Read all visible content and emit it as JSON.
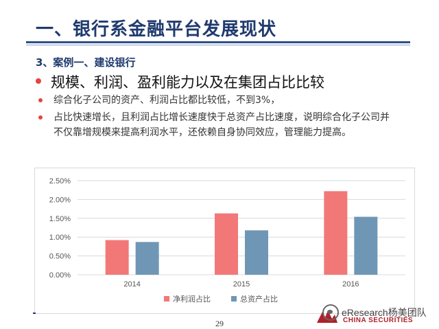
{
  "slide": {
    "title": "一、银行系金融平台发展现状",
    "subtitle": "3、案例一、建设银行",
    "main_bullet": "规模、利润、盈利能力以及在集团占比比较",
    "bullets": [
      "综合化子公司的资产、利润占比都比较低，不到3%，",
      "占比快速增长，且利润占比增长速度快于总资产占比速度，说明综合化子公司并不仅靠增规模来提高利润水平，还依赖自身协同效应，管理能力提高。"
    ],
    "page_number": "29",
    "watermark": "eResearch杨美团队",
    "brand": "CHINA SECURITIES",
    "accent_color": "#1f3a6e",
    "bullet_color": "#e8433f"
  },
  "chart_data": {
    "type": "bar",
    "categories": [
      "2014",
      "2015",
      "2016"
    ],
    "series": [
      {
        "name": "净利润占比",
        "values": [
          0.92,
          1.63,
          2.22
        ],
        "color": "#f27878"
      },
      {
        "name": "总资产占比",
        "values": [
          0.87,
          1.18,
          1.54
        ],
        "color": "#6f97b5"
      }
    ],
    "ylim": [
      0,
      2.5
    ],
    "yticks": [
      "0.00%",
      "0.50%",
      "1.00%",
      "1.50%",
      "2.00%",
      "2.50%"
    ],
    "ytick_values": [
      0,
      0.5,
      1.0,
      1.5,
      2.0,
      2.5
    ],
    "grid": true,
    "legend_position": "bottom"
  }
}
